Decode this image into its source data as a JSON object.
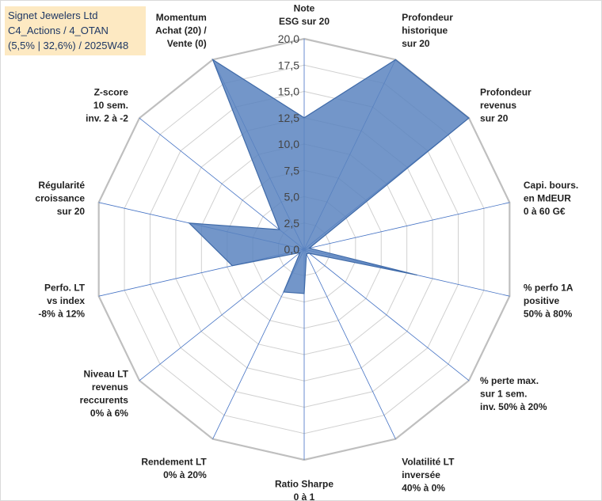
{
  "title_box": {
    "line1": "Signet Jewelers Ltd",
    "line2": "C4_Actions / 4_OTAN",
    "line3": "(5,5% | 32,6%) / 2025W48"
  },
  "colors": {
    "fill": "#5b84bf",
    "stroke": "#3f6aa8",
    "grid": "#d0d0d0",
    "spoke": "#4472c4",
    "title_bg": "#fde9c2"
  },
  "chart_data": {
    "type": "radar",
    "title": "Signet Jewelers Ltd",
    "rmin": 0,
    "rmax": 20,
    "ticks": [
      "0,0",
      "2,5",
      "5,0",
      "7,5",
      "10,0",
      "12,5",
      "15,0",
      "17,5",
      "20,0"
    ],
    "axes": [
      {
        "lines": [
          "Note",
          "ESG sur 20"
        ]
      },
      {
        "lines": [
          "Profondeur",
          "historique",
          "sur 20"
        ]
      },
      {
        "lines": [
          "Profondeur",
          "revenus",
          "sur 20"
        ]
      },
      {
        "lines": [
          "Capi. bours.",
          "en MdEUR",
          "0 à 60 G€"
        ]
      },
      {
        "lines": [
          "% perfo 1A",
          "positive",
          "50% à 80%"
        ]
      },
      {
        "lines": [
          "% perte max.",
          "sur 1 sem.",
          "inv. 50% à 20%"
        ]
      },
      {
        "lines": [
          "Volatilité LT",
          "inversée",
          "40% à 0%"
        ]
      },
      {
        "lines": [
          "Ratio Sharpe",
          "0 à 1"
        ]
      },
      {
        "lines": [
          "Rendement LT",
          "0% à 20%"
        ]
      },
      {
        "lines": [
          "Niveau LT",
          "revenus",
          "reccurents",
          "0% à 6%"
        ]
      },
      {
        "lines": [
          "Perfo. LT",
          "vs index",
          "-8% à 12%"
        ]
      },
      {
        "lines": [
          "Régularité",
          "croissance",
          "sur 20"
        ]
      },
      {
        "lines": [
          "Z-score",
          "10 sem.",
          "inv. 2 à -2"
        ]
      },
      {
        "lines": [
          "Momentum",
          "Achat (20) /",
          "Vente (0)"
        ]
      }
    ],
    "series": [
      {
        "name": "Signet Jewelers Ltd",
        "values": [
          12.5,
          20,
          20,
          0.5,
          11,
          0.6,
          0.5,
          4.2,
          4.5,
          0.5,
          7.0,
          11.2,
          3.0,
          20
        ]
      }
    ]
  }
}
